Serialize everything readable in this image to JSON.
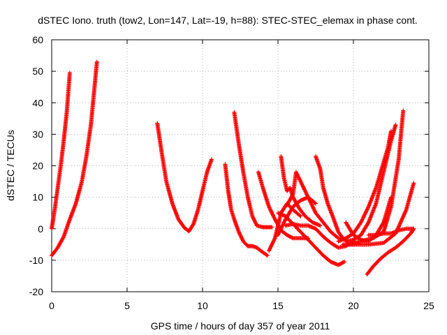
{
  "chart_data": {
    "type": "scatter",
    "title": "dSTEC Iono. truth (tow2, Lon=147, Lat=-19, h=88): STEC-STEC_elemax in phase cont.",
    "xlabel": "GPS time / hours of day 357 of year 2011",
    "ylabel": "dSTEC  / TECUs",
    "xlim": [
      0,
      25
    ],
    "ylim": [
      -20,
      60
    ],
    "x_ticks": [
      0,
      5,
      10,
      15,
      20,
      25
    ],
    "y_ticks": [
      -20,
      -10,
      0,
      10,
      20,
      30,
      40,
      50,
      60
    ],
    "grid": true,
    "marker": "plus",
    "color": "#ff0000",
    "series": [
      {
        "x": [
          0.0,
          0.2,
          0.4,
          0.6,
          0.8,
          1.0,
          1.2
        ],
        "y": [
          0.0,
          6.0,
          13.0,
          20.0,
          28.0,
          37.0,
          49.5
        ]
      },
      {
        "x": [
          0.0,
          0.4,
          0.8,
          1.2,
          1.6,
          2.0,
          2.3,
          2.6,
          2.8,
          3.0
        ],
        "y": [
          -8.5,
          -6.0,
          -2.5,
          3.0,
          8.0,
          15.0,
          23.0,
          33.0,
          43.0,
          53.0
        ]
      },
      {
        "x": [
          7.0,
          7.3,
          7.6,
          8.0,
          8.4,
          8.8,
          9.1,
          9.4,
          9.7,
          10.0,
          10.3,
          10.6
        ],
        "y": [
          33.5,
          24.0,
          15.0,
          8.0,
          3.0,
          0.3,
          -0.8,
          1.5,
          6.0,
          12.0,
          18.0,
          22.0
        ]
      },
      {
        "x": [
          11.5,
          11.7,
          11.9,
          12.1,
          12.4,
          12.7,
          13.0,
          13.3,
          13.6,
          14.0,
          14.3
        ],
        "y": [
          20.5,
          12.0,
          6.0,
          3.0,
          -1.0,
          -4.0,
          -5.5,
          -5.5,
          -6.0,
          -7.5,
          -8.5
        ]
      },
      {
        "x": [
          12.1,
          12.4,
          12.7,
          13.0,
          13.3,
          13.6,
          14.0,
          14.3,
          14.6
        ],
        "y": [
          37.0,
          27.0,
          18.0,
          10.0,
          4.0,
          1.0,
          0.5,
          0.5,
          0.5
        ]
      },
      {
        "x": [
          13.7,
          14.0,
          14.4,
          14.8,
          15.2,
          15.6,
          16.0,
          16.5,
          17.0
        ],
        "y": [
          18.0,
          13.0,
          7.0,
          3.0,
          -0.5,
          -2.0,
          -3.0,
          -3.0,
          -3.0
        ]
      },
      {
        "x": [
          14.4,
          14.8,
          15.2,
          15.6,
          16.0,
          16.5
        ],
        "y": [
          -7.0,
          -3.0,
          5.0,
          8.0,
          6.0,
          4.0
        ]
      },
      {
        "x": [
          15.2,
          15.4,
          15.6,
          15.8,
          16.0,
          16.4,
          16.8,
          17.3,
          17.8
        ],
        "y": [
          23.0,
          16.0,
          12.0,
          13.0,
          10.0,
          6.5,
          4.0,
          2.0,
          1.0
        ]
      },
      {
        "x": [
          15.0,
          15.5,
          16.0,
          16.5,
          17.0,
          17.5,
          18.0,
          18.5,
          19.0,
          19.4
        ],
        "y": [
          5.0,
          4.0,
          1.5,
          -1.0,
          -3.5,
          -6.0,
          -8.5,
          -10.5,
          -11.5,
          -10.5
        ]
      },
      {
        "x": [
          15.6,
          16.0,
          16.2,
          16.6,
          17.0,
          17.5,
          18.0,
          18.5,
          19.0,
          19.5
        ],
        "y": [
          7.5,
          11.0,
          18.0,
          14.0,
          10.0,
          5.0,
          2.0,
          -1.0,
          -3.0,
          -3.5
        ]
      },
      {
        "x": [
          15.0,
          15.5,
          16.0,
          16.5,
          17.0,
          17.5
        ],
        "y": [
          -2.0,
          3.0,
          7.0,
          9.0,
          10.0,
          8.0
        ]
      },
      {
        "x": [
          15.5,
          16.0,
          16.5,
          17.0,
          17.5,
          18.0,
          18.5,
          19.0,
          19.5,
          20.0
        ],
        "y": [
          1.0,
          1.5,
          1.0,
          1.0,
          0.0,
          -2.5,
          -4.5,
          -6.0,
          -5.5,
          -4.0
        ]
      },
      {
        "x": [
          17.5,
          17.8,
          18.0,
          18.3,
          18.7,
          19.0,
          19.3,
          19.6
        ],
        "y": [
          23.0,
          19.0,
          13.0,
          8.0,
          3.0,
          -1.0,
          -3.0,
          -4.0
        ]
      },
      {
        "x": [
          19.0,
          19.5,
          20.0,
          20.5,
          21.0,
          21.5,
          22.0,
          22.3,
          22.5
        ],
        "y": [
          -4.0,
          -3.0,
          -1.5,
          2.0,
          7.0,
          13.0,
          21.0,
          26.0,
          31.0
        ]
      },
      {
        "x": [
          19.5,
          20.0,
          20.5,
          21.0,
          21.5,
          22.0,
          22.5,
          22.8
        ],
        "y": [
          -4.0,
          -3.5,
          -2.0,
          2.0,
          8.0,
          18.0,
          28.0,
          33.0
        ]
      },
      {
        "x": [
          19.7,
          20.5,
          21.3,
          22.0,
          22.5,
          23.0,
          23.3
        ],
        "y": [
          -5.0,
          -4.0,
          -3.0,
          -1.0,
          7.0,
          22.0,
          37.5
        ]
      },
      {
        "x": [
          19.3,
          20.0,
          21.0,
          22.0,
          22.8,
          23.5,
          24.0
        ],
        "y": [
          -5.0,
          -5.0,
          -5.0,
          -4.5,
          -1.5,
          6.0,
          14.5
        ]
      },
      {
        "x": [
          19.5,
          20.0,
          20.5,
          21.0,
          21.5,
          22.0,
          22.5
        ],
        "y": [
          2.0,
          -2.0,
          -3.5,
          -4.0,
          -2.0,
          2.0,
          10.0
        ]
      },
      {
        "x": [
          21.0,
          21.5,
          22.0,
          22.5,
          23.0,
          23.5,
          24.0
        ],
        "y": [
          -2.0,
          -2.0,
          -1.5,
          -1.5,
          -0.5,
          0.0,
          0.0
        ]
      },
      {
        "x": [
          20.9,
          21.3,
          21.8,
          22.3,
          22.8,
          23.3,
          23.8,
          24.0
        ],
        "y": [
          -14.5,
          -12.0,
          -9.5,
          -7.5,
          -6.0,
          -4.0,
          -1.5,
          0.0
        ]
      }
    ]
  }
}
